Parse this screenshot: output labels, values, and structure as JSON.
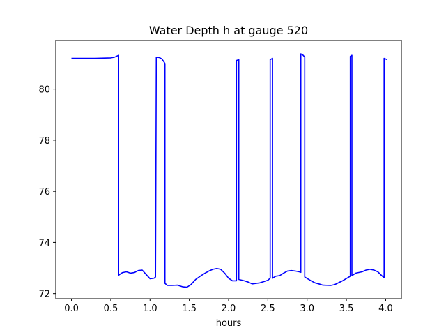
{
  "chart_data": {
    "type": "line",
    "title": "Water Depth h at gauge 520",
    "xlabel": "hours",
    "ylabel": "",
    "xlim": [
      -0.2,
      4.2
    ],
    "ylim": [
      71.8,
      81.9
    ],
    "xticks": [
      0.0,
      0.5,
      1.0,
      1.5,
      2.0,
      2.5,
      3.0,
      3.5,
      4.0
    ],
    "xtick_labels": [
      "0.0",
      "0.5",
      "1.0",
      "1.5",
      "2.0",
      "2.5",
      "3.0",
      "3.5",
      "4.0"
    ],
    "yticks": [
      72,
      74,
      76,
      78,
      80
    ],
    "ytick_labels": [
      "72",
      "74",
      "76",
      "78",
      "80"
    ],
    "grid": false,
    "line_color": "#0000ff",
    "series": [
      {
        "x": [
          0.0,
          0.3,
          0.5,
          0.55,
          0.6,
          0.6,
          0.65,
          0.7,
          0.75,
          0.8,
          0.85,
          0.9,
          0.95,
          1.0,
          1.05,
          1.07,
          1.08,
          1.12,
          1.15,
          1.18,
          1.19,
          1.19,
          1.22,
          1.28,
          1.35,
          1.42,
          1.47,
          1.52,
          1.58,
          1.65,
          1.7,
          1.75,
          1.8,
          1.85,
          1.9,
          1.95,
          2.0,
          2.05,
          2.1,
          2.1,
          2.13,
          2.13,
          2.2,
          2.25,
          2.3,
          2.4,
          2.5,
          2.53,
          2.53,
          2.56,
          2.56,
          2.6,
          2.65,
          2.7,
          2.75,
          2.8,
          2.85,
          2.9,
          2.92,
          2.92,
          2.95,
          2.97,
          2.97,
          3.05,
          3.1,
          3.15,
          3.2,
          3.3,
          3.35,
          3.45,
          3.55,
          3.55,
          3.57,
          3.57,
          3.62,
          3.7,
          3.75,
          3.8,
          3.85,
          3.9,
          3.95,
          3.98,
          3.98,
          4.02
        ],
        "y": [
          81.2,
          81.2,
          81.22,
          81.25,
          81.32,
          72.72,
          72.82,
          72.85,
          72.8,
          72.82,
          72.9,
          72.92,
          72.75,
          72.58,
          72.6,
          72.65,
          81.25,
          81.23,
          81.18,
          81.05,
          81.0,
          72.4,
          72.32,
          72.32,
          72.33,
          72.26,
          72.25,
          72.35,
          72.55,
          72.7,
          72.8,
          72.88,
          72.95,
          72.98,
          72.95,
          72.8,
          72.6,
          72.5,
          72.5,
          81.12,
          81.15,
          72.55,
          72.5,
          72.45,
          72.38,
          72.42,
          72.52,
          72.6,
          81.15,
          81.2,
          72.6,
          72.68,
          72.7,
          72.8,
          72.88,
          72.9,
          72.88,
          72.85,
          72.83,
          81.38,
          81.32,
          81.25,
          72.65,
          72.5,
          72.42,
          72.38,
          72.33,
          72.32,
          72.35,
          72.5,
          72.68,
          81.28,
          81.32,
          72.7,
          72.8,
          72.85,
          72.92,
          72.95,
          72.92,
          72.85,
          72.7,
          72.62,
          81.2,
          81.15
        ]
      }
    ]
  }
}
